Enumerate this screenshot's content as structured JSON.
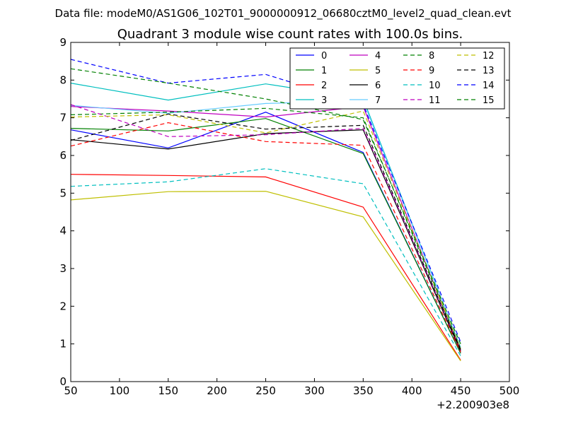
{
  "chart_data": {
    "type": "line",
    "suptitle": "Data file: modeM0/AS1G06_102T01_9000000912_06680cztM0_level2_quad_clean.evt",
    "title": "Quadrant 3 module wise count rates with 100.0s bins.",
    "xlabel": "",
    "ylabel": "",
    "x_offset_label": "+2.200903e8",
    "xlim": [
      50,
      500
    ],
    "ylim": [
      0,
      9
    ],
    "xticks": [
      "50",
      "100",
      "150",
      "200",
      "250",
      "300",
      "350",
      "400",
      "450",
      "500"
    ],
    "yticks": [
      "0",
      "1",
      "2",
      "3",
      "4",
      "5",
      "6",
      "7",
      "8",
      "9"
    ],
    "x": [
      50,
      150,
      250,
      350,
      450
    ],
    "legend_position": "top-right",
    "series": [
      {
        "name": "0",
        "color": "#0000ff",
        "dash": "solid",
        "values": [
          6.68,
          6.2,
          7.15,
          6.08,
          0.75
        ]
      },
      {
        "name": "1",
        "color": "#008000",
        "dash": "solid",
        "values": [
          6.72,
          6.65,
          6.98,
          6.05,
          0.75
        ]
      },
      {
        "name": "2",
        "color": "#ff0000",
        "dash": "solid",
        "values": [
          5.5,
          5.47,
          5.43,
          4.63,
          0.57
        ]
      },
      {
        "name": "3",
        "color": "#00bfbf",
        "dash": "solid",
        "values": [
          7.92,
          7.47,
          7.9,
          7.5,
          0.9
        ]
      },
      {
        "name": "4",
        "color": "#bf00bf",
        "dash": "solid",
        "values": [
          7.3,
          7.18,
          7.02,
          7.3,
          0.82
        ]
      },
      {
        "name": "5",
        "color": "#bfbf00",
        "dash": "solid",
        "values": [
          4.82,
          5.04,
          5.05,
          4.37,
          0.55
        ]
      },
      {
        "name": "6",
        "color": "#000000",
        "dash": "solid",
        "values": [
          6.42,
          6.17,
          6.58,
          6.68,
          0.8
        ]
      },
      {
        "name": "7",
        "color": "#66ccff",
        "dash": "solid",
        "values": [
          7.33,
          7.12,
          7.38,
          7.45,
          0.9
        ]
      },
      {
        "name": "8",
        "color": "#008000",
        "dash": "dashed",
        "values": [
          7.08,
          7.15,
          7.25,
          7.0,
          0.88
        ]
      },
      {
        "name": "9",
        "color": "#ff0000",
        "dash": "dashed",
        "values": [
          6.25,
          6.87,
          6.37,
          6.27,
          0.78
        ]
      },
      {
        "name": "10",
        "color": "#00bfbf",
        "dash": "dashed",
        "values": [
          5.18,
          5.3,
          5.65,
          5.25,
          0.68
        ]
      },
      {
        "name": "11",
        "color": "#bf00bf",
        "dash": "dashed",
        "values": [
          7.35,
          6.5,
          6.55,
          6.72,
          0.85
        ]
      },
      {
        "name": "12",
        "color": "#bfbf00",
        "dash": "dashed",
        "values": [
          7.02,
          7.08,
          6.6,
          7.18,
          0.87
        ]
      },
      {
        "name": "13",
        "color": "#000000",
        "dash": "dashed",
        "values": [
          6.4,
          7.1,
          6.7,
          6.8,
          0.85
        ]
      },
      {
        "name": "14",
        "color": "#0000ff",
        "dash": "dashed",
        "values": [
          8.55,
          7.92,
          8.15,
          7.35,
          1.05
        ]
      },
      {
        "name": "15",
        "color": "#008000",
        "dash": "dashed",
        "values": [
          8.3,
          7.92,
          7.5,
          6.95,
          1.0
        ]
      }
    ]
  }
}
